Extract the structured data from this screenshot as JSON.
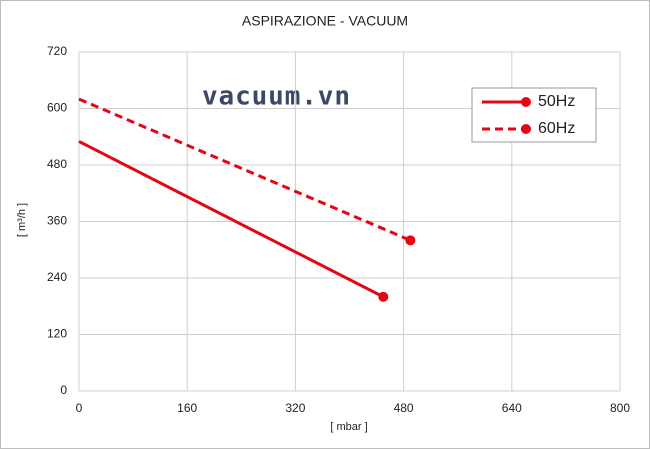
{
  "chart_data": {
    "type": "line",
    "title": "ASPIRAZIONE - VACUUM",
    "x_label": "[ mbar ]",
    "y_label": "[ m³/h ]",
    "annotation": "vacuum.vn",
    "xlim": [
      0,
      800
    ],
    "xticks": [
      0,
      160,
      320,
      480,
      640,
      800
    ],
    "ylim": [
      0,
      720
    ],
    "yticks": [
      0,
      120,
      240,
      360,
      480,
      600,
      720
    ],
    "grid": true,
    "legend": "upper right",
    "series": [
      {
        "name": "50Hz",
        "color": "#e30613",
        "dashed": false,
        "x": [
          0,
          450
        ],
        "values": [
          530,
          200
        ]
      },
      {
        "name": "60Hz",
        "color": "#e30613",
        "dashed": true,
        "x": [
          0,
          490
        ],
        "values": [
          620,
          320
        ]
      }
    ]
  }
}
